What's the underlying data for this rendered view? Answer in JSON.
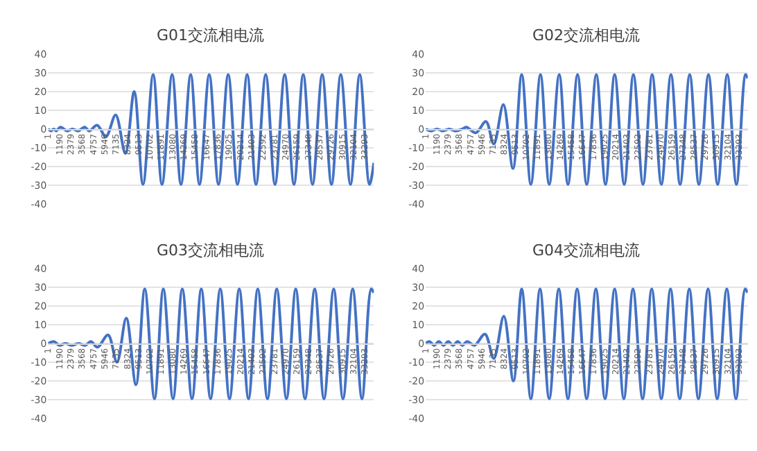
{
  "chart_data": [
    {
      "type": "line",
      "title": "G01交流相电流",
      "xlim": [
        1,
        34244
      ],
      "xticks": [
        1,
        1190,
        2379,
        3568,
        4757,
        5946,
        7135,
        8324,
        9513,
        10702,
        11891,
        13080,
        14269,
        15458,
        16647,
        17836,
        19025,
        20214,
        21403,
        22592,
        23781,
        24970,
        26159,
        27348,
        28537,
        29726,
        30915,
        32104,
        33293
      ],
      "ylim": [
        -40,
        40
      ],
      "yticks": [
        -40,
        -30,
        -20,
        -10,
        0,
        10,
        20,
        30,
        40
      ],
      "grid": "y",
      "marker": "none",
      "line_style": "solid",
      "series": [
        {
          "color": "#4472c4",
          "x": [
            1,
            300,
            604,
            850,
            1300,
            1996,
            2553,
            3156,
            3852,
            4316,
            5151,
            6079,
            7100,
            8121,
            9049,
            9977,
            11044,
            11972,
            13039,
            13968,
            14988,
            15916,
            16937,
            17912,
            18932,
            19907,
            20927,
            21855,
            22876,
            23851,
            24871,
            25846,
            26820,
            27795,
            28815,
            29790,
            30764,
            31785,
            32759,
            33780,
            34244
          ],
          "values": [
            0,
            -1,
            0,
            -1,
            1,
            -1,
            0,
            -1,
            1,
            -1,
            2,
            -4,
            7.5,
            -13,
            20,
            -29.5,
            29,
            -29.5,
            29,
            -29.5,
            29,
            -29.5,
            29,
            -29.5,
            29,
            -29.5,
            29,
            -29.5,
            29,
            -29.5,
            29,
            -29.5,
            29,
            -29.5,
            29,
            -29.5,
            29,
            -29.5,
            29,
            -29.5,
            -18
          ]
        }
      ]
    },
    {
      "type": "line",
      "title": "G02交流相电流",
      "xlim": [
        1,
        34244
      ],
      "xticks": [
        1,
        1190,
        2379,
        3568,
        4757,
        5946,
        7135,
        8324,
        9513,
        10702,
        11891,
        13080,
        14269,
        15458,
        16647,
        17836,
        19025,
        20214,
        21403,
        22592,
        23781,
        24970,
        26159,
        27348,
        28537,
        29726,
        30915,
        32104,
        33293
      ],
      "ylim": [
        -40,
        40
      ],
      "yticks": [
        -40,
        -30,
        -20,
        -10,
        0,
        10,
        20,
        30,
        40
      ],
      "grid": "y",
      "marker": "none",
      "line_style": "solid",
      "series": [
        {
          "color": "#4472c4",
          "x": [
            1,
            600,
            1200,
            1800,
            2500,
            3200,
            3900,
            4316,
            5337,
            6404,
            7239,
            8260,
            9281,
            10209,
            11183,
            12204,
            13132,
            14199,
            15127,
            16148,
            17123,
            18143,
            19118,
            20092,
            21113,
            22087,
            23108,
            24083,
            25057,
            26078,
            27052,
            28073,
            29047,
            30068,
            31043,
            32064,
            33038,
            34012,
            34244
          ],
          "values": [
            0,
            -1,
            0,
            -1,
            0,
            -1,
            0,
            1,
            -2,
            4,
            -8,
            13,
            -21,
            29,
            -29.5,
            29,
            -29.5,
            29,
            -29.5,
            29,
            -29.5,
            29,
            -29.5,
            29,
            -29.5,
            29,
            -29.5,
            29,
            -29.5,
            29,
            -29.5,
            29,
            -29.5,
            29,
            -29.5,
            29,
            -29.5,
            29,
            27
          ]
        }
      ]
    },
    {
      "type": "line",
      "title": "G03交流相电流",
      "xlim": [
        1,
        34244
      ],
      "xticks": [
        1,
        1190,
        2379,
        3568,
        4757,
        5946,
        7135,
        8324,
        9513,
        10702,
        11891,
        13080,
        14269,
        15458,
        16647,
        17836,
        19025,
        20214,
        21403,
        22592,
        23781,
        24970,
        26159,
        27348,
        28537,
        29726,
        30915,
        32104,
        33293
      ],
      "ylim": [
        -40,
        40
      ],
      "yticks": [
        -40,
        -30,
        -20,
        -10,
        0,
        10,
        20,
        30,
        40
      ],
      "grid": "y",
      "marker": "none",
      "line_style": "solid",
      "series": [
        {
          "color": "#4472c4",
          "x": [
            1,
            600,
            1200,
            1800,
            2500,
            3200,
            3900,
            4500,
            5200,
            6300,
            7239,
            8214,
            9234,
            10162,
            11183,
            12111,
            13132,
            14106,
            15127,
            16101,
            17076,
            18097,
            19071,
            20092,
            21066,
            22041,
            23062,
            24036,
            25057,
            26032,
            27006,
            28027,
            29001,
            30022,
            30997,
            32018,
            32992,
            33966,
            34244
          ],
          "values": [
            0,
            1,
            -1,
            0,
            -1,
            0,
            -1,
            1,
            -2,
            4.5,
            -10,
            13.5,
            -22,
            29,
            -29.5,
            29,
            -29.5,
            29,
            -29.5,
            29,
            -29.5,
            29,
            -29.5,
            29,
            -29.5,
            29,
            -29.5,
            29,
            -29.5,
            29,
            -29.5,
            29,
            -29.5,
            29,
            -29.5,
            29,
            -29.5,
            29,
            27
          ]
        }
      ]
    },
    {
      "type": "line",
      "title": "G04交流相电流",
      "xlim": [
        1,
        34244
      ],
      "xticks": [
        1,
        1190,
        2379,
        3568,
        4757,
        5946,
        7135,
        8324,
        9513,
        10702,
        11891,
        13080,
        14269,
        15458,
        16647,
        17836,
        19025,
        20214,
        21403,
        22592,
        23781,
        24970,
        26159,
        27348,
        28537,
        29726,
        30915,
        32104,
        33293
      ],
      "ylim": [
        -40,
        40
      ],
      "yticks": [
        -40,
        -30,
        -20,
        -10,
        0,
        10,
        20,
        30,
        40
      ],
      "grid": "y",
      "marker": "none",
      "line_style": "solid",
      "series": [
        {
          "color": "#4472c4",
          "x": [
            1,
            400,
            900,
            1400,
            1900,
            2400,
            2900,
            3400,
            3900,
            4400,
            5200,
            6300,
            7239,
            8306,
            9327,
            10209,
            11183,
            12157,
            13132,
            14153,
            15127,
            16101,
            17122,
            18097,
            19071,
            20092,
            21066,
            22041,
            23062,
            24036,
            25057,
            26032,
            27006,
            28027,
            29001,
            30022,
            30997,
            32018,
            32992,
            33966,
            34244
          ],
          "values": [
            0,
            1,
            -1,
            1,
            -1,
            1,
            -1,
            1,
            -1,
            1,
            -1,
            5,
            -8,
            14.5,
            -20,
            29,
            -29.5,
            29,
            -29.5,
            29,
            -29.5,
            29,
            -29.5,
            29,
            -29.5,
            29,
            -29.5,
            29,
            -29.5,
            29,
            -29.5,
            29,
            -29.5,
            29,
            -29.5,
            29,
            -29.5,
            29,
            -29.5,
            29,
            27
          ]
        }
      ]
    }
  ]
}
